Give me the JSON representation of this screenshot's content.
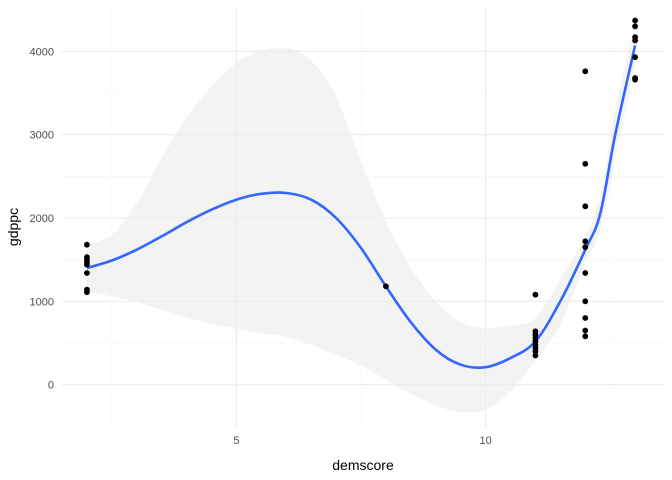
{
  "chart_data": {
    "type": "scatter",
    "xlabel": "demscore",
    "ylabel": "gdppc",
    "xlim": [
      1.5,
      13.6
    ],
    "ylim": [
      -520,
      4520
    ],
    "x_ticks": [
      5,
      10
    ],
    "x_tick_labels": [
      "5",
      "10"
    ],
    "x_minor_ticks": [
      2.5,
      7.5,
      12.5
    ],
    "y_ticks": [
      0,
      1000,
      2000,
      3000,
      4000
    ],
    "y_tick_labels": [
      "0",
      "1000",
      "2000",
      "3000",
      "4000"
    ],
    "y_minor_ticks": [
      500,
      1500,
      2500,
      3500
    ],
    "grid": true,
    "legend": "none",
    "colors": {
      "points": "#000000",
      "smooth_line": "#3366ff",
      "ribbon": "#ebebeb",
      "grid_major": "#ebebeb",
      "grid_minor": "#f4f4f4"
    },
    "points": [
      {
        "x": 2,
        "y": 1680
      },
      {
        "x": 2,
        "y": 1530
      },
      {
        "x": 2,
        "y": 1500
      },
      {
        "x": 2,
        "y": 1470
      },
      {
        "x": 2,
        "y": 1440
      },
      {
        "x": 2,
        "y": 1340
      },
      {
        "x": 2,
        "y": 1140
      },
      {
        "x": 2,
        "y": 1110
      },
      {
        "x": 8,
        "y": 1180
      },
      {
        "x": 11,
        "y": 1080
      },
      {
        "x": 11,
        "y": 640
      },
      {
        "x": 11,
        "y": 600
      },
      {
        "x": 11,
        "y": 560
      },
      {
        "x": 11,
        "y": 520
      },
      {
        "x": 11,
        "y": 480
      },
      {
        "x": 11,
        "y": 440
      },
      {
        "x": 11,
        "y": 400
      },
      {
        "x": 11,
        "y": 350
      },
      {
        "x": 12,
        "y": 3760
      },
      {
        "x": 12,
        "y": 2650
      },
      {
        "x": 12,
        "y": 2140
      },
      {
        "x": 12,
        "y": 1720
      },
      {
        "x": 12,
        "y": 1650
      },
      {
        "x": 12,
        "y": 1340
      },
      {
        "x": 12,
        "y": 1000
      },
      {
        "x": 12,
        "y": 800
      },
      {
        "x": 12,
        "y": 650
      },
      {
        "x": 12,
        "y": 580
      },
      {
        "x": 13,
        "y": 4370
      },
      {
        "x": 13,
        "y": 4300
      },
      {
        "x": 13,
        "y": 4170
      },
      {
        "x": 13,
        "y": 4130
      },
      {
        "x": 13,
        "y": 3930
      },
      {
        "x": 13,
        "y": 3680
      },
      {
        "x": 13,
        "y": 3660
      }
    ],
    "smooth": [
      {
        "x": 2.0,
        "y": 1400,
        "lo": 1120,
        "hi": 1680
      },
      {
        "x": 2.5,
        "y": 1490,
        "lo": 1060,
        "hi": 1800
      },
      {
        "x": 3.0,
        "y": 1620,
        "lo": 990,
        "hi": 2180
      },
      {
        "x": 3.5,
        "y": 1780,
        "lo": 900,
        "hi": 2720
      },
      {
        "x": 4.0,
        "y": 1950,
        "lo": 810,
        "hi": 3200
      },
      {
        "x": 4.5,
        "y": 2100,
        "lo": 730,
        "hi": 3580
      },
      {
        "x": 5.0,
        "y": 2220,
        "lo": 670,
        "hi": 3860
      },
      {
        "x": 5.5,
        "y": 2290,
        "lo": 620,
        "hi": 4010
      },
      {
        "x": 6.0,
        "y": 2300,
        "lo": 570,
        "hi": 4040
      },
      {
        "x": 6.5,
        "y": 2220,
        "lo": 480,
        "hi": 3890
      },
      {
        "x": 7.0,
        "y": 2000,
        "lo": 360,
        "hi": 3450
      },
      {
        "x": 7.5,
        "y": 1640,
        "lo": 230,
        "hi": 2680
      },
      {
        "x": 8.0,
        "y": 1180,
        "lo": 60,
        "hi": 1960
      },
      {
        "x": 8.5,
        "y": 750,
        "lo": -110,
        "hi": 1400
      },
      {
        "x": 9.0,
        "y": 420,
        "lo": -250,
        "hi": 1000
      },
      {
        "x": 9.5,
        "y": 240,
        "lo": -330,
        "hi": 750
      },
      {
        "x": 10.0,
        "y": 210,
        "lo": -300,
        "hi": 680
      },
      {
        "x": 10.5,
        "y": 320,
        "lo": -80,
        "hi": 710
      },
      {
        "x": 11.0,
        "y": 520,
        "lo": 290,
        "hi": 800
      },
      {
        "x": 11.5,
        "y": 1000,
        "lo": 720,
        "hi": 1270
      },
      {
        "x": 12.0,
        "y": 1620,
        "lo": 1460,
        "hi": 1780
      },
      {
        "x": 12.3,
        "y": 2050,
        "lo": 1850,
        "hi": 2250
      },
      {
        "x": 12.6,
        "y": 3000,
        "lo": 2700,
        "hi": 3300
      },
      {
        "x": 13.0,
        "y": 4070,
        "lo": 3820,
        "hi": 4330
      }
    ]
  }
}
